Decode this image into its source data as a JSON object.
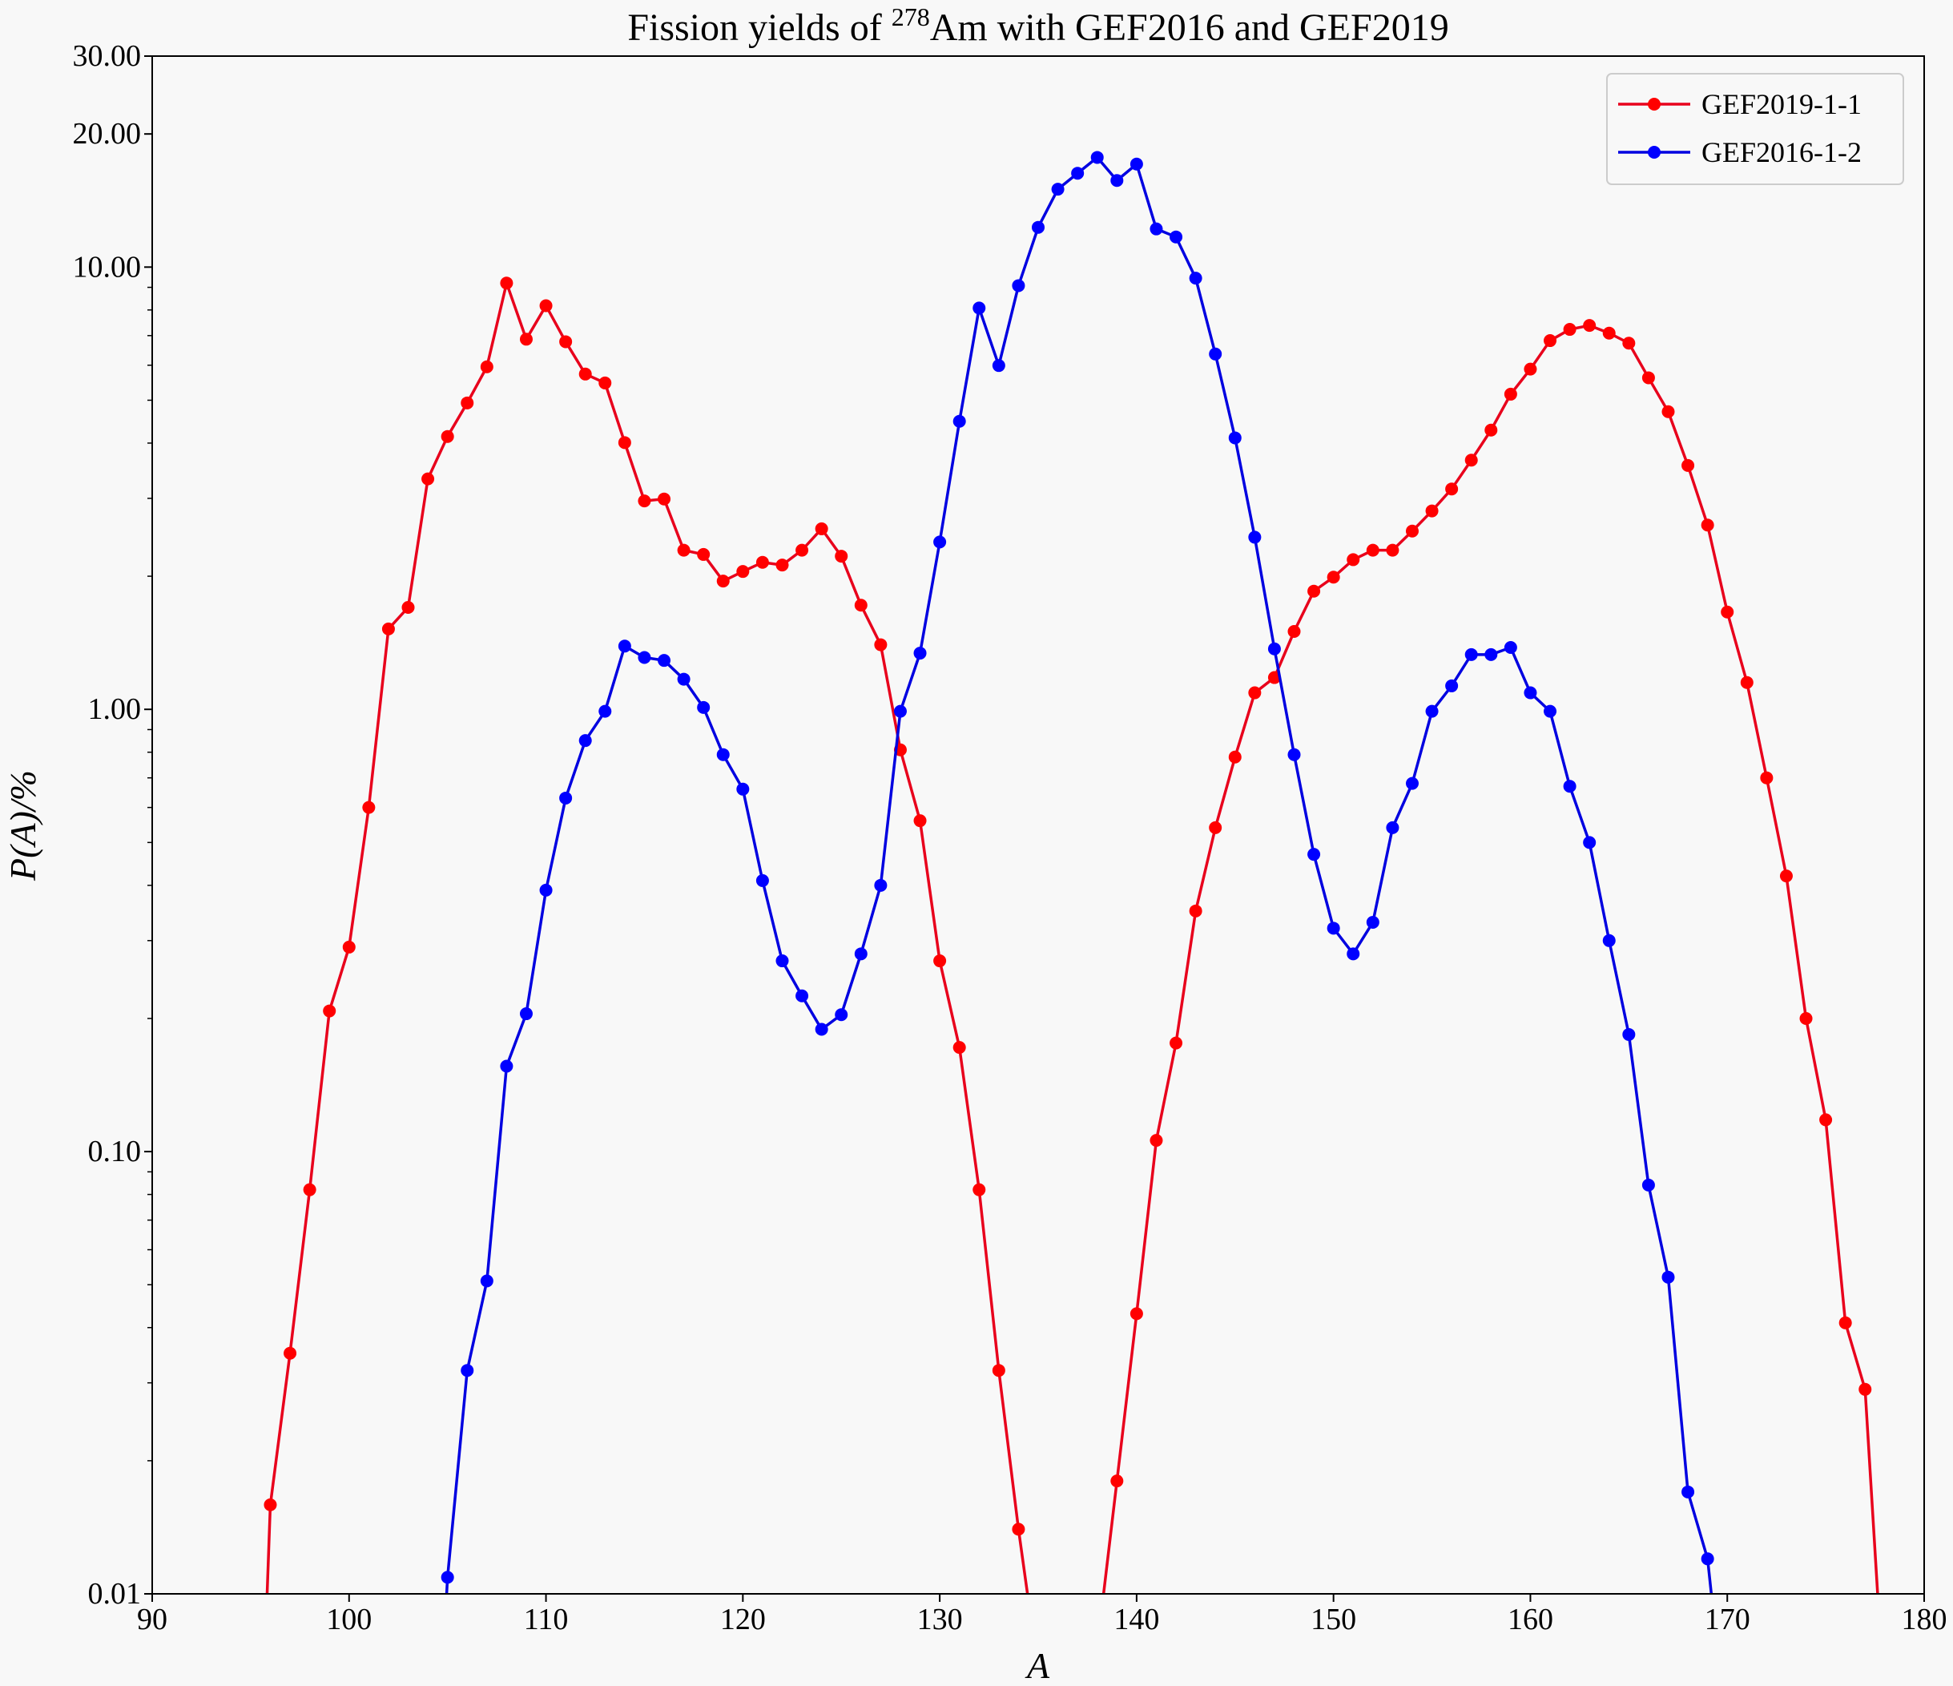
{
  "chart_data": {
    "type": "line",
    "title": {
      "prefix": "Fission yields of ",
      "superscript": "278",
      "suffix": "Am with GEF2016 and GEF2019"
    },
    "xlabel": "A",
    "ylabel": "P(A)/%",
    "xlim": [
      90,
      180
    ],
    "ylim": [
      0.01,
      30
    ],
    "yscale": "log",
    "grid": false,
    "legend_position": "top-right",
    "x_ticks": [
      "90",
      "100",
      "110",
      "120",
      "130",
      "140",
      "150",
      "160",
      "170",
      "180"
    ],
    "y_ticks": [
      {
        "value": 0.01,
        "label": "0.01"
      },
      {
        "value": 0.1,
        "label": "0.10"
      },
      {
        "value": 1,
        "label": "1.00"
      },
      {
        "value": 10,
        "label": "10.00"
      },
      {
        "value": 20,
        "label": "20.00"
      },
      {
        "value": 30,
        "label": "30.00"
      }
    ],
    "series": [
      {
        "name": "GEF2019-1-1",
        "color": "#e8001c",
        "marker_color": "#ff0000",
        "x": [
          95.8,
          96,
          97,
          98,
          99,
          100,
          101,
          102,
          103,
          104,
          105,
          106,
          107,
          108,
          109,
          110,
          111,
          112,
          113,
          114,
          115,
          116,
          117,
          118,
          119,
          120,
          121,
          122,
          123,
          124,
          125,
          126,
          127,
          128,
          129,
          130,
          131,
          132,
          133,
          134,
          134.6,
          138.2,
          139,
          140,
          141,
          142,
          143,
          144,
          145,
          146,
          147,
          148,
          149,
          150,
          151,
          152,
          153,
          154,
          155,
          156,
          157,
          158,
          159,
          160,
          161,
          162,
          163,
          164,
          165,
          166,
          167,
          168,
          169,
          170,
          171,
          172,
          173,
          174,
          175,
          176,
          177,
          177.7
        ],
        "y": [
          0.009,
          0.0159,
          0.035,
          0.082,
          0.208,
          0.29,
          0.6,
          1.52,
          1.7,
          3.32,
          4.14,
          4.93,
          5.95,
          9.2,
          6.87,
          8.18,
          6.78,
          5.73,
          5.47,
          4.01,
          2.96,
          2.99,
          2.29,
          2.24,
          1.95,
          2.05,
          2.15,
          2.12,
          2.29,
          2.56,
          2.22,
          1.72,
          1.4,
          0.81,
          0.56,
          0.27,
          0.172,
          0.082,
          0.032,
          0.014,
          0.009,
          0.009,
          0.018,
          0.043,
          0.106,
          0.176,
          0.35,
          0.54,
          0.78,
          1.09,
          1.18,
          1.5,
          1.85,
          1.99,
          2.18,
          2.29,
          2.29,
          2.53,
          2.81,
          3.15,
          3.66,
          4.28,
          5.16,
          5.88,
          6.82,
          7.23,
          7.38,
          7.09,
          6.73,
          5.62,
          4.71,
          3.56,
          2.61,
          1.66,
          1.15,
          0.7,
          0.42,
          0.2,
          0.118,
          0.041,
          0.029,
          0.009
        ]
      },
      {
        "name": "GEF2016-1-2",
        "color": "#0000e0",
        "marker_color": "#0000ff",
        "x": [
          104.9,
          105,
          106,
          107,
          108,
          109,
          110,
          111,
          112,
          113,
          114,
          115,
          116,
          117,
          118,
          119,
          120,
          121,
          122,
          123,
          124,
          125,
          126,
          127,
          128,
          129,
          130,
          131,
          132,
          133,
          134,
          135,
          136,
          137,
          138,
          139,
          140,
          141,
          142,
          143,
          144,
          145,
          146,
          147,
          148,
          149,
          150,
          151,
          152,
          153,
          154,
          155,
          156,
          157,
          158,
          159,
          160,
          161,
          162,
          163,
          164,
          165,
          166,
          167,
          168,
          169,
          169.3
        ],
        "y": [
          0.009,
          0.0109,
          0.032,
          0.051,
          0.156,
          0.205,
          0.39,
          0.63,
          0.85,
          0.99,
          1.39,
          1.31,
          1.29,
          1.17,
          1.01,
          0.79,
          0.66,
          0.41,
          0.27,
          0.225,
          0.189,
          0.204,
          0.28,
          0.4,
          0.99,
          1.34,
          2.39,
          4.48,
          8.08,
          5.99,
          9.08,
          12.3,
          15.0,
          16.3,
          17.7,
          15.7,
          17.1,
          12.2,
          11.7,
          9.44,
          6.36,
          4.11,
          2.45,
          1.37,
          0.79,
          0.47,
          0.32,
          0.28,
          0.33,
          0.54,
          0.68,
          0.99,
          1.13,
          1.33,
          1.33,
          1.38,
          1.09,
          0.99,
          0.67,
          0.5,
          0.3,
          0.184,
          0.084,
          0.052,
          0.017,
          0.012,
          0.009
        ]
      }
    ]
  }
}
